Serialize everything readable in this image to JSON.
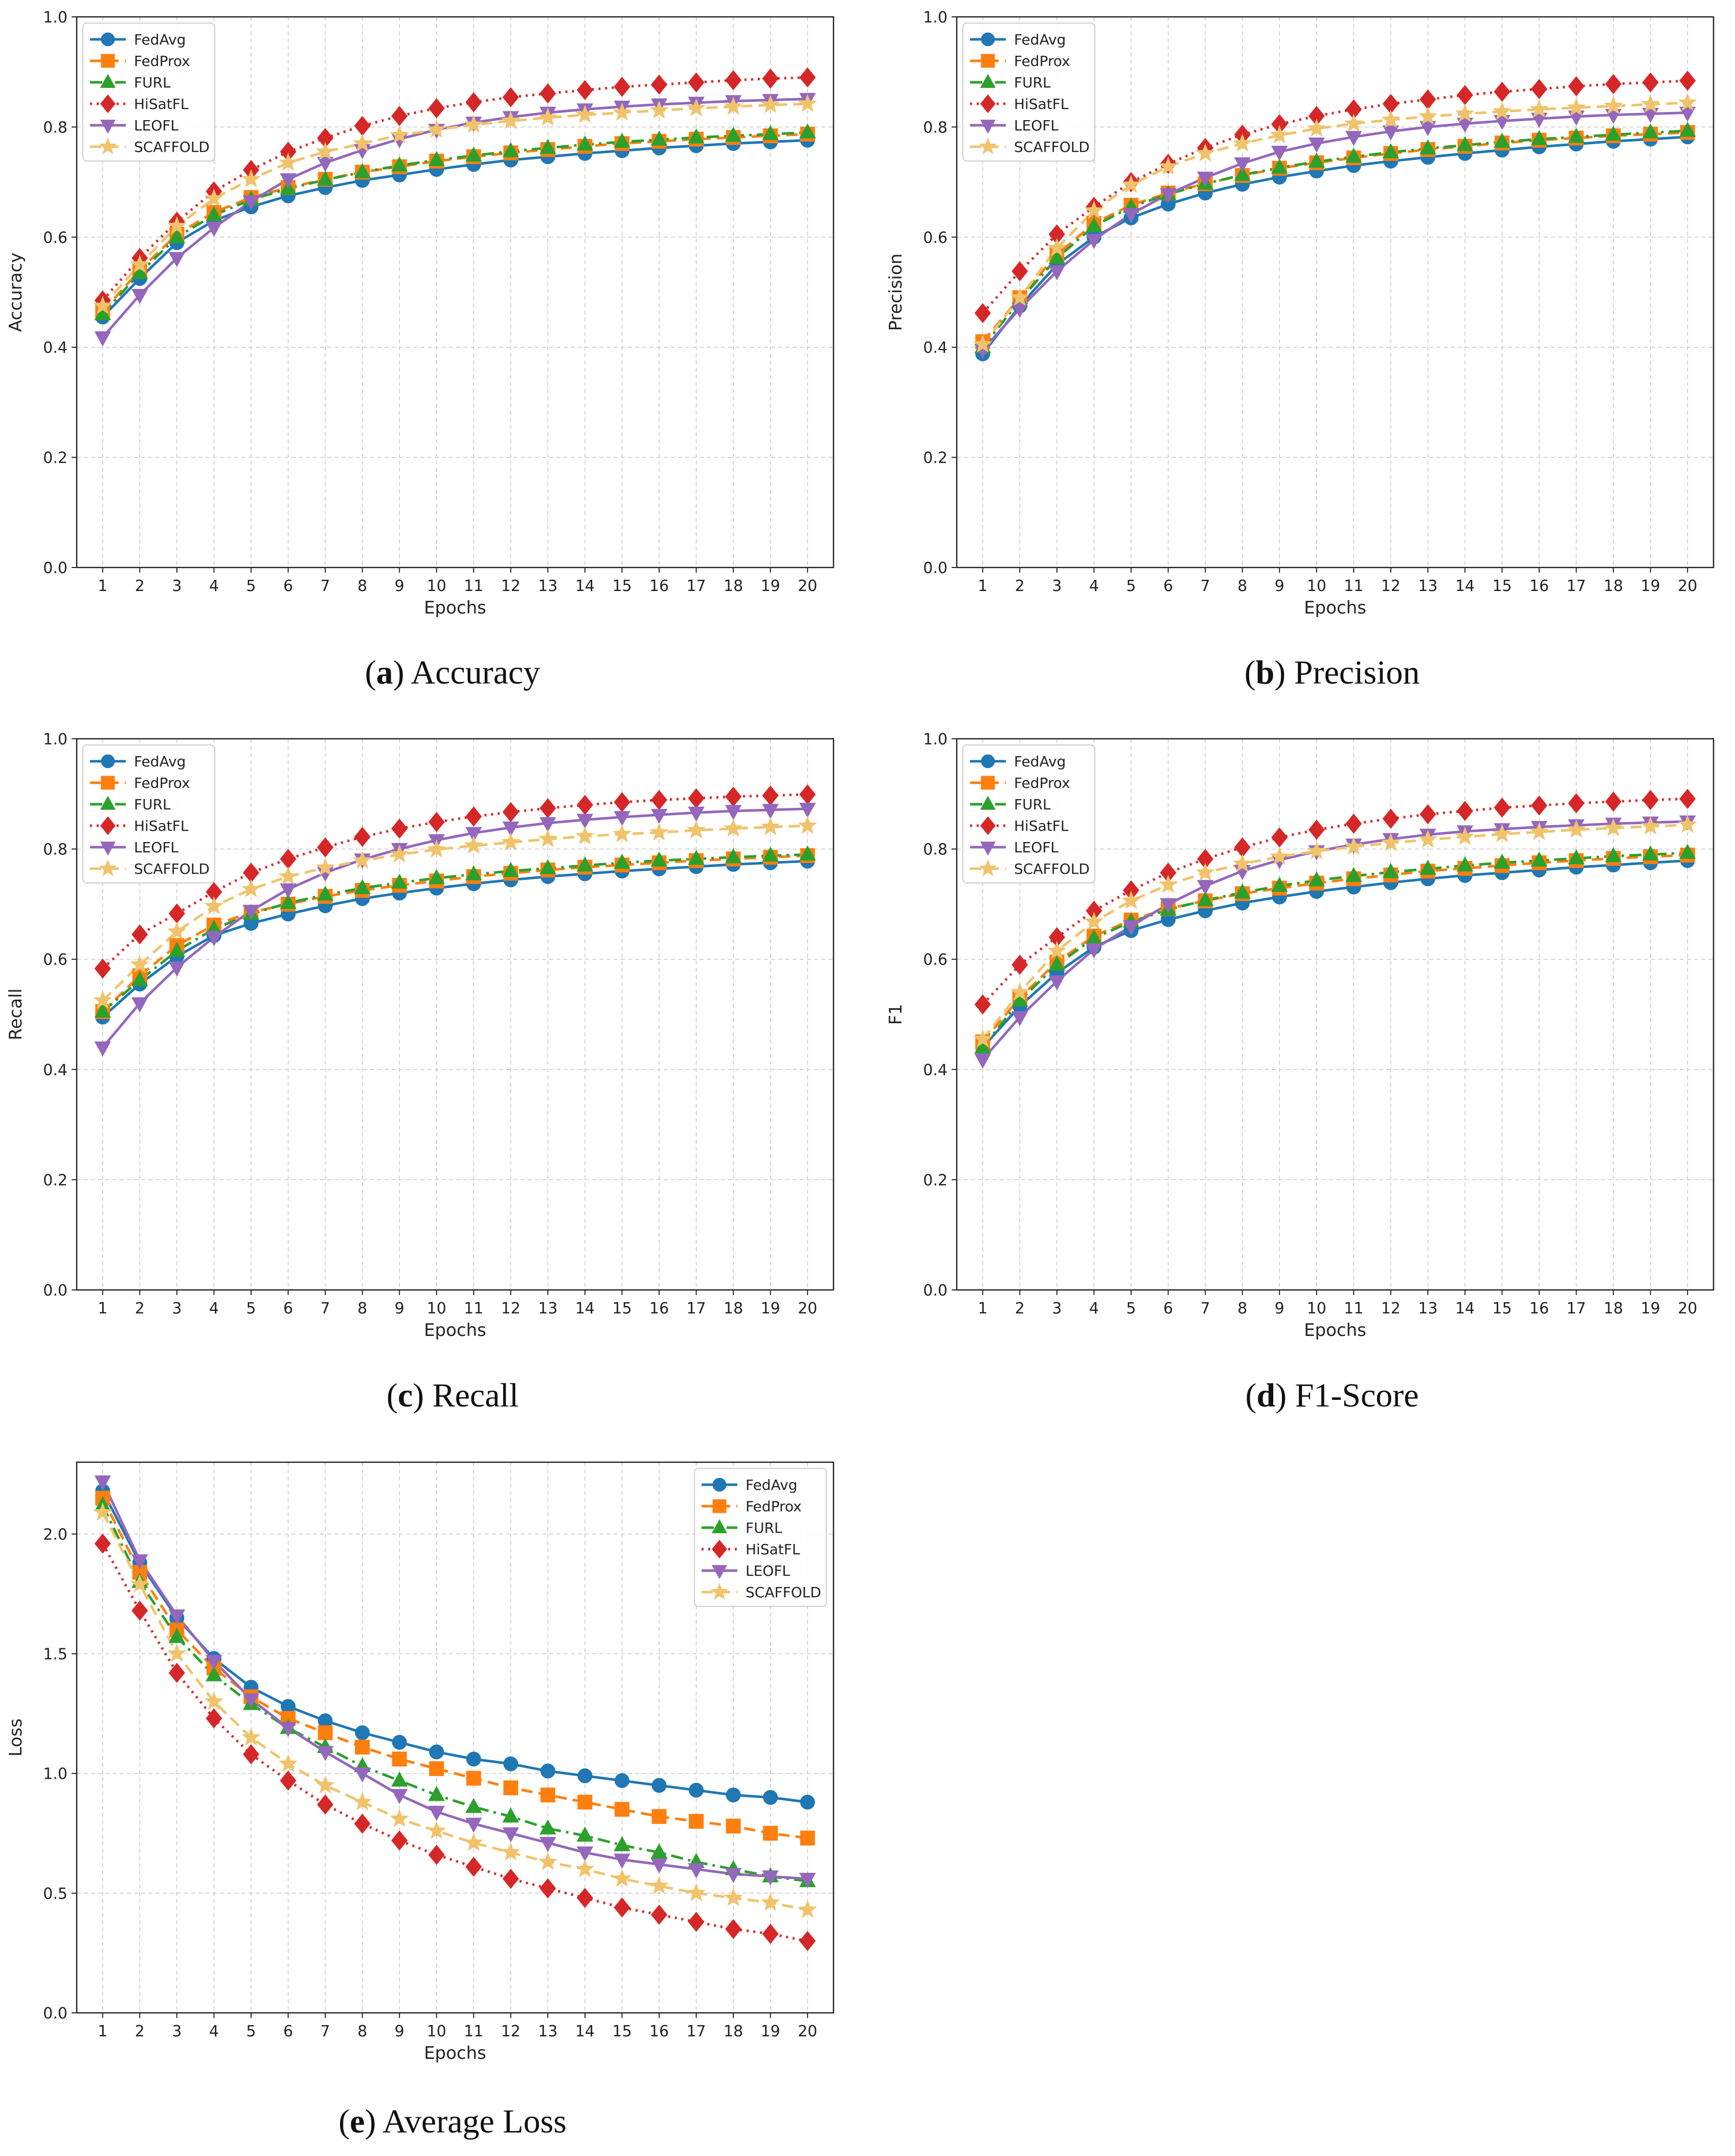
{
  "epochs": [
    1,
    2,
    3,
    4,
    5,
    6,
    7,
    8,
    9,
    10,
    11,
    12,
    13,
    14,
    15,
    16,
    17,
    18,
    19,
    20
  ],
  "legend_labels": [
    "FedAvg",
    "FedProx",
    "FURL",
    "HiSatFL",
    "LEOFL",
    "SCAFFOLD"
  ],
  "styles": {
    "FedAvg": {
      "color": "#1f77b4",
      "marker": "circle",
      "dash": "solid"
    },
    "FedProx": {
      "color": "#ff7f0e",
      "marker": "square",
      "dash": "dashed"
    },
    "FURL": {
      "color": "#2ca02c",
      "marker": "triangle-up",
      "dash": "dashdot"
    },
    "HiSatFL": {
      "color": "#d62728",
      "marker": "diamond",
      "dash": "dotted"
    },
    "LEOFL": {
      "color": "#9467bd",
      "marker": "triangle-down",
      "dash": "solid"
    },
    "SCAFFOLD": {
      "color": "#f0c36b",
      "marker": "star",
      "dash": "dashed"
    }
  },
  "captions": {
    "a": {
      "letter": "a",
      "text": "Accuracy"
    },
    "b": {
      "letter": "b",
      "text": "Precision"
    },
    "c": {
      "letter": "c",
      "text": "Recall"
    },
    "d": {
      "letter": "d",
      "text": "F1-Score"
    },
    "e": {
      "letter": "e",
      "text": "Average Loss"
    }
  },
  "chart_data": [
    {
      "id": "a",
      "type": "line",
      "xlabel": "Epochs",
      "ylabel": "Accuracy",
      "ylim": [
        0,
        1.0
      ],
      "yticks": [
        "0.0",
        "0.2",
        "0.4",
        "0.6",
        "0.8",
        "1.0"
      ],
      "grid": true,
      "legend": "upper-left",
      "series": [
        {
          "name": "FedAvg",
          "values": [
            0.455,
            0.525,
            0.59,
            0.63,
            0.655,
            0.675,
            0.69,
            0.703,
            0.713,
            0.723,
            0.732,
            0.74,
            0.746,
            0.752,
            0.757,
            0.762,
            0.766,
            0.77,
            0.773,
            0.776
          ]
        },
        {
          "name": "FedProx",
          "values": [
            0.465,
            0.54,
            0.605,
            0.645,
            0.672,
            0.69,
            0.705,
            0.718,
            0.728,
            0.738,
            0.746,
            0.753,
            0.759,
            0.765,
            0.77,
            0.774,
            0.778,
            0.781,
            0.784,
            0.787
          ]
        },
        {
          "name": "FURL",
          "values": [
            0.46,
            0.535,
            0.6,
            0.64,
            0.668,
            0.688,
            0.704,
            0.718,
            0.73,
            0.74,
            0.748,
            0.756,
            0.762,
            0.768,
            0.773,
            0.777,
            0.781,
            0.784,
            0.787,
            0.79
          ]
        },
        {
          "name": "HiSatFL",
          "values": [
            0.485,
            0.562,
            0.628,
            0.683,
            0.722,
            0.755,
            0.78,
            0.802,
            0.82,
            0.834,
            0.845,
            0.854,
            0.861,
            0.867,
            0.873,
            0.877,
            0.881,
            0.885,
            0.888,
            0.89
          ]
        },
        {
          "name": "LEOFL",
          "values": [
            0.418,
            0.495,
            0.562,
            0.617,
            0.665,
            0.705,
            0.735,
            0.758,
            0.778,
            0.795,
            0.808,
            0.818,
            0.826,
            0.832,
            0.837,
            0.841,
            0.844,
            0.847,
            0.849,
            0.851
          ]
        },
        {
          "name": "SCAFFOLD",
          "values": [
            0.475,
            0.55,
            0.62,
            0.67,
            0.705,
            0.735,
            0.755,
            0.77,
            0.785,
            0.795,
            0.804,
            0.811,
            0.817,
            0.822,
            0.826,
            0.83,
            0.834,
            0.837,
            0.84,
            0.842
          ]
        }
      ]
    },
    {
      "id": "b",
      "type": "line",
      "xlabel": "Epochs",
      "ylabel": "Precision",
      "ylim": [
        0,
        1.0
      ],
      "yticks": [
        "0.0",
        "0.2",
        "0.4",
        "0.6",
        "0.8",
        "1.0"
      ],
      "grid": true,
      "legend": "upper-left",
      "series": [
        {
          "name": "FedAvg",
          "values": [
            0.388,
            0.475,
            0.55,
            0.6,
            0.635,
            0.66,
            0.68,
            0.696,
            0.709,
            0.72,
            0.73,
            0.738,
            0.745,
            0.752,
            0.758,
            0.764,
            0.769,
            0.774,
            0.778,
            0.782
          ]
        },
        {
          "name": "FedProx",
          "values": [
            0.41,
            0.49,
            0.568,
            0.625,
            0.658,
            0.68,
            0.697,
            0.712,
            0.725,
            0.735,
            0.744,
            0.752,
            0.759,
            0.765,
            0.771,
            0.776,
            0.78,
            0.784,
            0.787,
            0.79
          ]
        },
        {
          "name": "FURL",
          "values": [
            0.4,
            0.485,
            0.562,
            0.62,
            0.655,
            0.678,
            0.697,
            0.713,
            0.726,
            0.737,
            0.746,
            0.754,
            0.761,
            0.767,
            0.773,
            0.778,
            0.782,
            0.786,
            0.79,
            0.793
          ]
        },
        {
          "name": "HiSatFL",
          "values": [
            0.462,
            0.538,
            0.605,
            0.655,
            0.7,
            0.733,
            0.762,
            0.786,
            0.805,
            0.82,
            0.832,
            0.842,
            0.85,
            0.858,
            0.864,
            0.869,
            0.874,
            0.878,
            0.881,
            0.884
          ]
        },
        {
          "name": "LEOFL",
          "values": [
            0.395,
            0.47,
            0.538,
            0.595,
            0.642,
            0.678,
            0.708,
            0.734,
            0.755,
            0.77,
            0.782,
            0.792,
            0.8,
            0.806,
            0.811,
            0.815,
            0.819,
            0.822,
            0.824,
            0.826
          ]
        },
        {
          "name": "SCAFFOLD",
          "values": [
            0.405,
            0.49,
            0.58,
            0.648,
            0.695,
            0.728,
            0.752,
            0.77,
            0.785,
            0.797,
            0.806,
            0.813,
            0.819,
            0.824,
            0.828,
            0.832,
            0.835,
            0.838,
            0.841,
            0.844
          ]
        }
      ]
    },
    {
      "id": "c",
      "type": "line",
      "xlabel": "Epochs",
      "ylabel": "Recall",
      "ylim": [
        0,
        1.0
      ],
      "yticks": [
        "0.0",
        "0.2",
        "0.4",
        "0.6",
        "0.8",
        "1.0"
      ],
      "grid": true,
      "legend": "upper-left",
      "series": [
        {
          "name": "FedAvg",
          "values": [
            0.495,
            0.555,
            0.605,
            0.643,
            0.665,
            0.682,
            0.697,
            0.71,
            0.72,
            0.729,
            0.737,
            0.744,
            0.75,
            0.755,
            0.76,
            0.764,
            0.768,
            0.772,
            0.775,
            0.778
          ]
        },
        {
          "name": "FedProx",
          "values": [
            0.505,
            0.57,
            0.625,
            0.662,
            0.685,
            0.7,
            0.714,
            0.725,
            0.734,
            0.742,
            0.75,
            0.756,
            0.762,
            0.767,
            0.771,
            0.775,
            0.779,
            0.782,
            0.785,
            0.788
          ]
        },
        {
          "name": "FURL",
          "values": [
            0.505,
            0.562,
            0.615,
            0.655,
            0.682,
            0.702,
            0.717,
            0.729,
            0.739,
            0.747,
            0.754,
            0.76,
            0.765,
            0.77,
            0.775,
            0.779,
            0.782,
            0.785,
            0.788,
            0.79
          ]
        },
        {
          "name": "HiSatFL",
          "values": [
            0.583,
            0.645,
            0.683,
            0.722,
            0.757,
            0.782,
            0.803,
            0.822,
            0.837,
            0.849,
            0.859,
            0.867,
            0.874,
            0.88,
            0.885,
            0.889,
            0.892,
            0.895,
            0.897,
            0.899
          ]
        },
        {
          "name": "LEOFL",
          "values": [
            0.44,
            0.52,
            0.585,
            0.64,
            0.688,
            0.727,
            0.757,
            0.781,
            0.8,
            0.816,
            0.829,
            0.839,
            0.847,
            0.853,
            0.858,
            0.862,
            0.866,
            0.869,
            0.871,
            0.873
          ]
        },
        {
          "name": "SCAFFOLD",
          "values": [
            0.525,
            0.59,
            0.65,
            0.696,
            0.727,
            0.75,
            0.766,
            0.779,
            0.79,
            0.799,
            0.806,
            0.812,
            0.818,
            0.823,
            0.827,
            0.83,
            0.834,
            0.837,
            0.84,
            0.842
          ]
        }
      ]
    },
    {
      "id": "d",
      "type": "line",
      "xlabel": "Epochs",
      "ylabel": "F1",
      "ylim": [
        0,
        1.0
      ],
      "yticks": [
        "0.0",
        "0.2",
        "0.4",
        "0.6",
        "0.8",
        "1.0"
      ],
      "grid": true,
      "legend": "upper-left",
      "series": [
        {
          "name": "FedAvg",
          "values": [
            0.44,
            0.515,
            0.575,
            0.622,
            0.652,
            0.672,
            0.688,
            0.702,
            0.713,
            0.723,
            0.731,
            0.739,
            0.746,
            0.752,
            0.757,
            0.762,
            0.767,
            0.771,
            0.775,
            0.779
          ]
        },
        {
          "name": "FedProx",
          "values": [
            0.45,
            0.53,
            0.595,
            0.642,
            0.671,
            0.692,
            0.706,
            0.719,
            0.729,
            0.738,
            0.746,
            0.753,
            0.76,
            0.765,
            0.77,
            0.775,
            0.779,
            0.783,
            0.786,
            0.789
          ]
        },
        {
          "name": "FURL",
          "values": [
            0.44,
            0.525,
            0.59,
            0.638,
            0.668,
            0.69,
            0.707,
            0.721,
            0.733,
            0.743,
            0.751,
            0.758,
            0.764,
            0.77,
            0.775,
            0.779,
            0.783,
            0.787,
            0.79,
            0.793
          ]
        },
        {
          "name": "HiSatFL",
          "values": [
            0.518,
            0.59,
            0.64,
            0.688,
            0.725,
            0.757,
            0.782,
            0.803,
            0.821,
            0.835,
            0.846,
            0.855,
            0.863,
            0.869,
            0.875,
            0.879,
            0.883,
            0.886,
            0.889,
            0.891
          ]
        },
        {
          "name": "LEOFL",
          "values": [
            0.418,
            0.495,
            0.56,
            0.618,
            0.66,
            0.7,
            0.733,
            0.76,
            0.78,
            0.796,
            0.808,
            0.818,
            0.826,
            0.832,
            0.836,
            0.84,
            0.843,
            0.846,
            0.848,
            0.85
          ]
        },
        {
          "name": "SCAFFOLD",
          "values": [
            0.455,
            0.54,
            0.615,
            0.668,
            0.706,
            0.735,
            0.757,
            0.773,
            0.786,
            0.796,
            0.804,
            0.811,
            0.817,
            0.822,
            0.827,
            0.831,
            0.835,
            0.838,
            0.841,
            0.844
          ]
        }
      ]
    },
    {
      "id": "e",
      "type": "line",
      "xlabel": "Epochs",
      "ylabel": "Loss",
      "ylim": [
        0,
        2.3
      ],
      "yticks": [
        "0.0",
        "0.5",
        "1.0",
        "1.5",
        "2.0"
      ],
      "ytick_values": [
        0,
        0.5,
        1.0,
        1.5,
        2.0
      ],
      "grid": true,
      "legend": "upper-right",
      "series": [
        {
          "name": "FedAvg",
          "values": [
            2.18,
            1.88,
            1.65,
            1.48,
            1.36,
            1.28,
            1.22,
            1.17,
            1.13,
            1.09,
            1.06,
            1.04,
            1.01,
            0.99,
            0.97,
            0.95,
            0.93,
            0.91,
            0.9,
            0.88
          ]
        },
        {
          "name": "FedProx",
          "values": [
            2.15,
            1.84,
            1.6,
            1.44,
            1.32,
            1.23,
            1.17,
            1.11,
            1.06,
            1.02,
            0.98,
            0.94,
            0.91,
            0.88,
            0.85,
            0.82,
            0.8,
            0.78,
            0.75,
            0.73
          ]
        },
        {
          "name": "FURL",
          "values": [
            2.12,
            1.8,
            1.57,
            1.41,
            1.29,
            1.19,
            1.11,
            1.03,
            0.97,
            0.91,
            0.86,
            0.82,
            0.77,
            0.74,
            0.7,
            0.67,
            0.63,
            0.6,
            0.57,
            0.55
          ]
        },
        {
          "name": "HiSatFL",
          "values": [
            1.96,
            1.68,
            1.42,
            1.23,
            1.08,
            0.97,
            0.87,
            0.79,
            0.72,
            0.66,
            0.61,
            0.56,
            0.52,
            0.48,
            0.44,
            0.41,
            0.38,
            0.35,
            0.33,
            0.3
          ]
        },
        {
          "name": "LEOFL",
          "values": [
            2.22,
            1.89,
            1.66,
            1.47,
            1.31,
            1.19,
            1.09,
            1.0,
            0.91,
            0.84,
            0.79,
            0.75,
            0.71,
            0.67,
            0.64,
            0.62,
            0.6,
            0.58,
            0.57,
            0.56
          ]
        },
        {
          "name": "SCAFFOLD",
          "values": [
            2.09,
            1.79,
            1.5,
            1.3,
            1.15,
            1.04,
            0.95,
            0.88,
            0.81,
            0.76,
            0.71,
            0.67,
            0.63,
            0.6,
            0.56,
            0.53,
            0.5,
            0.48,
            0.46,
            0.43
          ]
        }
      ]
    }
  ]
}
